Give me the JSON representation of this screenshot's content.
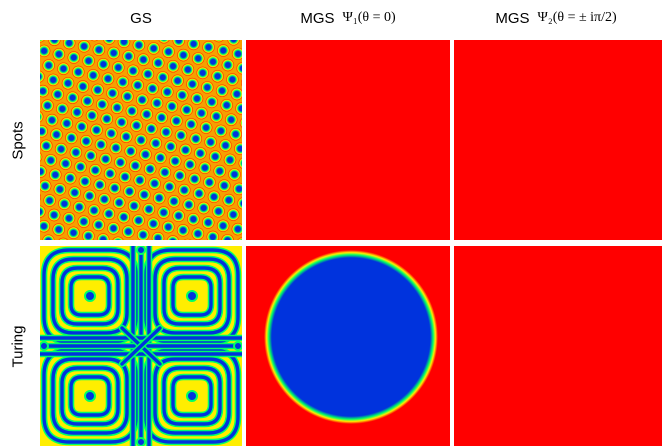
{
  "columns": [
    {
      "label": "GS",
      "math": ""
    },
    {
      "label": "MGS",
      "math": "Ψ₁(θ = 0)"
    },
    {
      "label": "MGS",
      "math": "Ψ₂(θ = ± iπ/2)"
    }
  ],
  "rows": [
    {
      "label": "Spots"
    },
    {
      "label": "Turing"
    }
  ],
  "panels": [
    {
      "row": "Spots",
      "column": "GS",
      "pattern": "hexagonal-spots"
    },
    {
      "row": "Spots",
      "column": "MGS Ψ₁(θ = 0)",
      "pattern": "uniform"
    },
    {
      "row": "Spots",
      "column": "MGS Ψ₂(θ = ± iπ/2)",
      "pattern": "uniform"
    },
    {
      "row": "Turing",
      "column": "GS",
      "pattern": "labyrinth-stripes"
    },
    {
      "row": "Turing",
      "column": "MGS Ψ₁(θ = 0)",
      "pattern": "single-disk"
    },
    {
      "row": "Turing",
      "column": "MGS Ψ₂(θ = ± iπ/2)",
      "pattern": "uniform"
    }
  ],
  "colors": {
    "high": "#ff0000",
    "mid": "#ffee00",
    "edge": "#00ff66",
    "low": "#0033dd",
    "spot_background": "#f6a000"
  }
}
